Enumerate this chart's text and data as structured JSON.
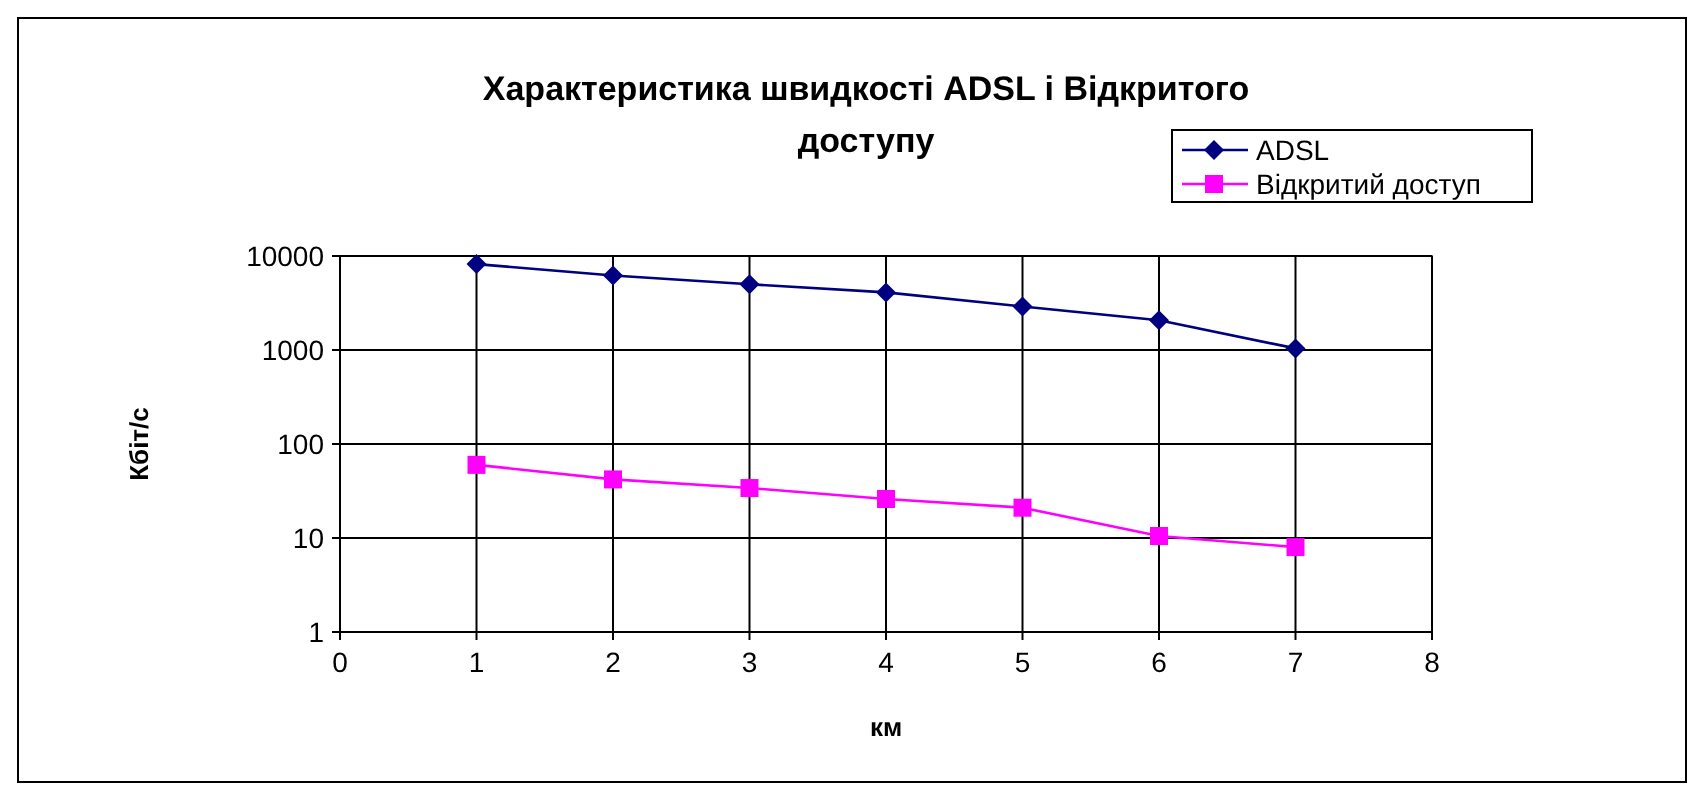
{
  "chart_data": {
    "type": "line",
    "title": "Характеристика швидкості ADSL і Відкритого доступу",
    "xlabel": "км",
    "ylabel": "Кбіт/с",
    "x": [
      1,
      2,
      3,
      4,
      5,
      6,
      7
    ],
    "xlim": [
      0,
      8
    ],
    "xticks": [
      0,
      1,
      2,
      3,
      4,
      5,
      6,
      7,
      8
    ],
    "ylim": [
      1,
      10000
    ],
    "yticks": [
      1,
      10,
      100,
      1000,
      10000
    ],
    "log": "y",
    "grid": true,
    "legend": "top right",
    "series": [
      {
        "name": "ADSL",
        "color": "#000080",
        "marker": "diamond",
        "values": [
          8200,
          6200,
          5000,
          4100,
          2900,
          2070,
          1040
        ]
      },
      {
        "name": "Відкритий доступ",
        "color": "#ff00ff",
        "marker": "square",
        "values": [
          60,
          42,
          34,
          26,
          21,
          10.5,
          8
        ]
      }
    ]
  }
}
